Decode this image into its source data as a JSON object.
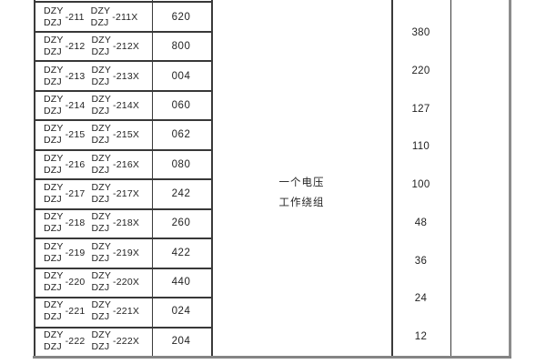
{
  "table": {
    "rows": [
      {
        "top": "DZY",
        "bottom": "DZJ",
        "suffix": "-211",
        "top2": "DZY",
        "bottom2": "DZJ",
        "suffix2": "-211X",
        "code": "620"
      },
      {
        "top": "DZY",
        "bottom": "DZJ",
        "suffix": "-212",
        "top2": "DZY",
        "bottom2": "DZJ",
        "suffix2": "-212X",
        "code": "800"
      },
      {
        "top": "DZY",
        "bottom": "DZJ",
        "suffix": "-213",
        "top2": "DZY",
        "bottom2": "DZJ",
        "suffix2": "-213X",
        "code": "004"
      },
      {
        "top": "DZY",
        "bottom": "DZJ",
        "suffix": "-214",
        "top2": "DZY",
        "bottom2": "DZJ",
        "suffix2": "-214X",
        "code": "060"
      },
      {
        "top": "DZY",
        "bottom": "DZJ",
        "suffix": "-215",
        "top2": "DZY",
        "bottom2": "DZJ",
        "suffix2": "-215X",
        "code": "062"
      },
      {
        "top": "DZY",
        "bottom": "DZJ",
        "suffix": "-216",
        "top2": "DZY",
        "bottom2": "DZJ",
        "suffix2": "-216X",
        "code": "080"
      },
      {
        "top": "DZY",
        "bottom": "DZJ",
        "suffix": "-217",
        "top2": "DZY",
        "bottom2": "DZJ",
        "suffix2": "-217X",
        "code": "242"
      },
      {
        "top": "DZY",
        "bottom": "DZJ",
        "suffix": "-218",
        "top2": "DZY",
        "bottom2": "DZJ",
        "suffix2": "-218X",
        "code": "260"
      },
      {
        "top": "DZY",
        "bottom": "DZJ",
        "suffix": "-219",
        "top2": "DZY",
        "bottom2": "DZJ",
        "suffix2": "-219X",
        "code": "422"
      },
      {
        "top": "DZY",
        "bottom": "DZJ",
        "suffix": "-220",
        "top2": "DZY",
        "bottom2": "DZJ",
        "suffix2": "-220X",
        "code": "440"
      },
      {
        "top": "DZY",
        "bottom": "DZJ",
        "suffix": "-221",
        "top2": "DZY",
        "bottom2": "DZJ",
        "suffix2": "-221X",
        "code": "024"
      },
      {
        "top": "DZY",
        "bottom": "DZJ",
        "suffix": "-222",
        "top2": "DZY",
        "bottom2": "DZJ",
        "suffix2": "-222X",
        "code": "204"
      }
    ],
    "winding_label": {
      "line1": "一个电压",
      "line2": "工作绕组"
    },
    "voltages": [
      "380",
      "220",
      "127",
      "110",
      "100",
      "48",
      "36",
      "24",
      "12"
    ]
  },
  "colors": {
    "background": "#ffffff",
    "text": "#1f1f1f",
    "inner_border": "#3a3a3a",
    "outer_border": "#8c8c8c"
  }
}
